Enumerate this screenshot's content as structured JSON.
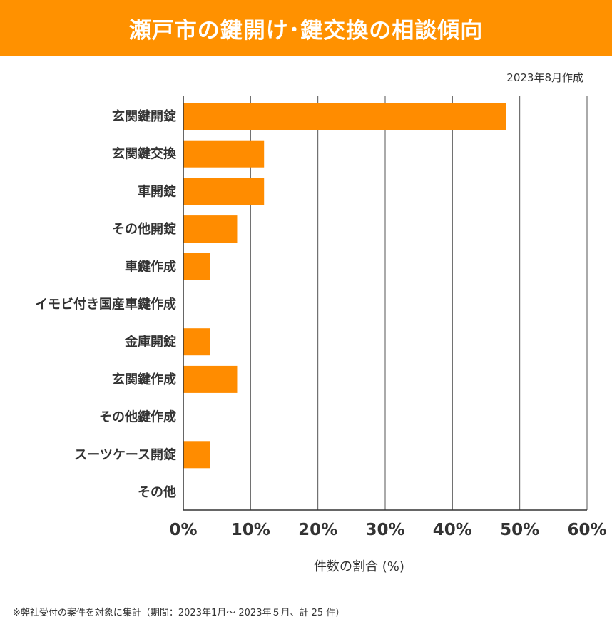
{
  "chart_data": {
    "type": "bar",
    "orientation": "horizontal",
    "title": "瀬戸市の鍵開け･鍵交換の相談傾向",
    "subtitle": "2023年8月作成",
    "categories": [
      "玄関鍵開錠",
      "玄関鍵交換",
      "車開錠",
      "その他開錠",
      "車鍵作成",
      "イモビ付き国産車鍵作成",
      "金庫開錠",
      "玄関鍵作成",
      "その他鍵作成",
      "スーツケース開錠",
      "その他"
    ],
    "values": [
      48,
      12,
      12,
      8,
      4,
      0,
      4,
      8,
      0,
      4,
      0
    ],
    "xlabel": "件数の割合 (%)",
    "ylabel": "",
    "xlim": [
      0,
      60
    ],
    "xticks": [
      "0%",
      "10%",
      "20%",
      "30%",
      "40%",
      "50%",
      "60%"
    ],
    "grid": "vertical",
    "bar_color": "#ff8c00",
    "footnote": "※弊社受付の案件を対象に集計（期間：2023年1月～ 2023年５月、計 25 件）"
  },
  "header_color": "#ff9100"
}
